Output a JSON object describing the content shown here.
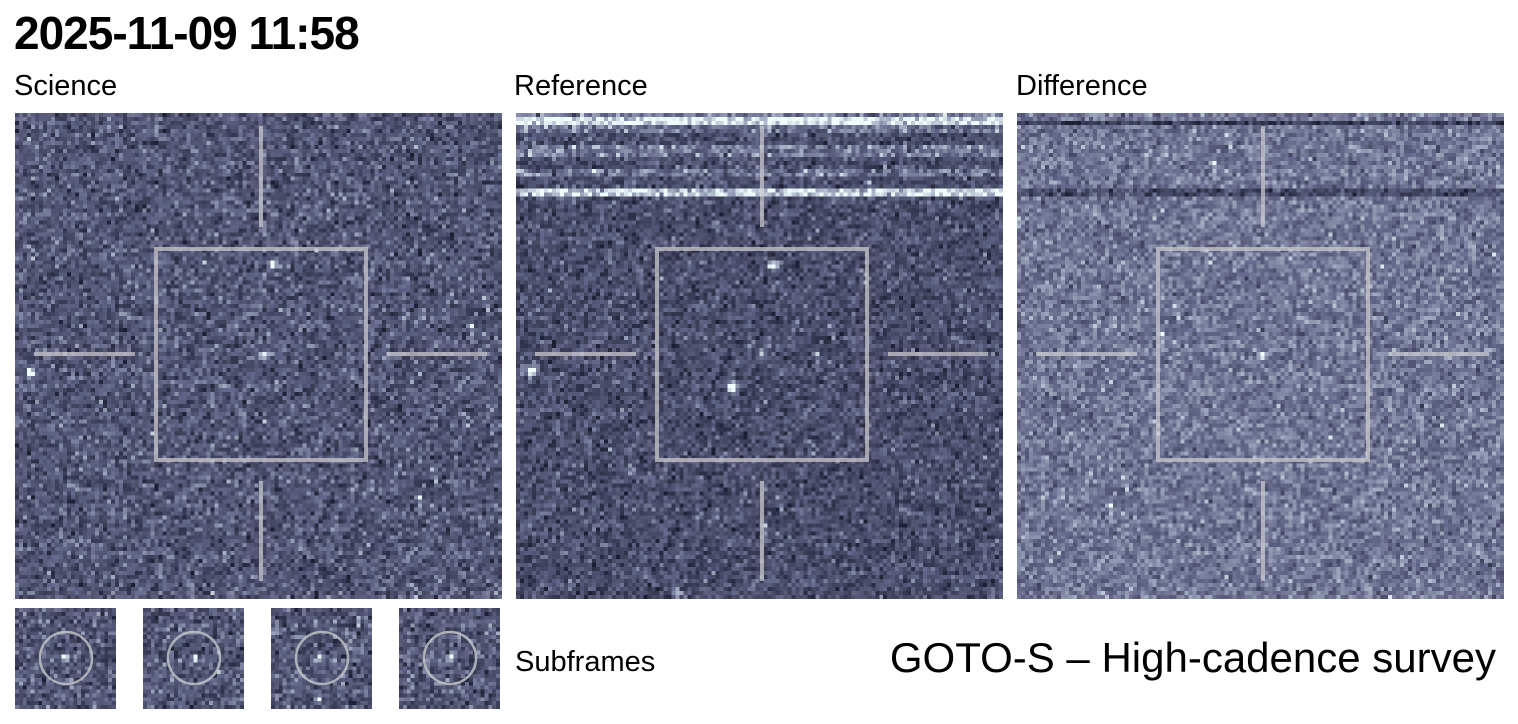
{
  "header": {
    "timestamp": "2025-11-09 11:58"
  },
  "panels": [
    {
      "label": "Science",
      "style": "science"
    },
    {
      "label": "Reference",
      "style": "reference"
    },
    {
      "label": "Difference",
      "style": "difference"
    }
  ],
  "subframes": {
    "label": "Subframes",
    "count": 4
  },
  "footer": {
    "survey": "GOTO-S – High-cadence survey"
  },
  "colors": {
    "background": "#ffffff",
    "stamp_dark": "#2a2c44",
    "stamp_mid": "#6a6e8e",
    "stamp_light": "#e8f4f4",
    "overlay": "#c8c8cc"
  }
}
